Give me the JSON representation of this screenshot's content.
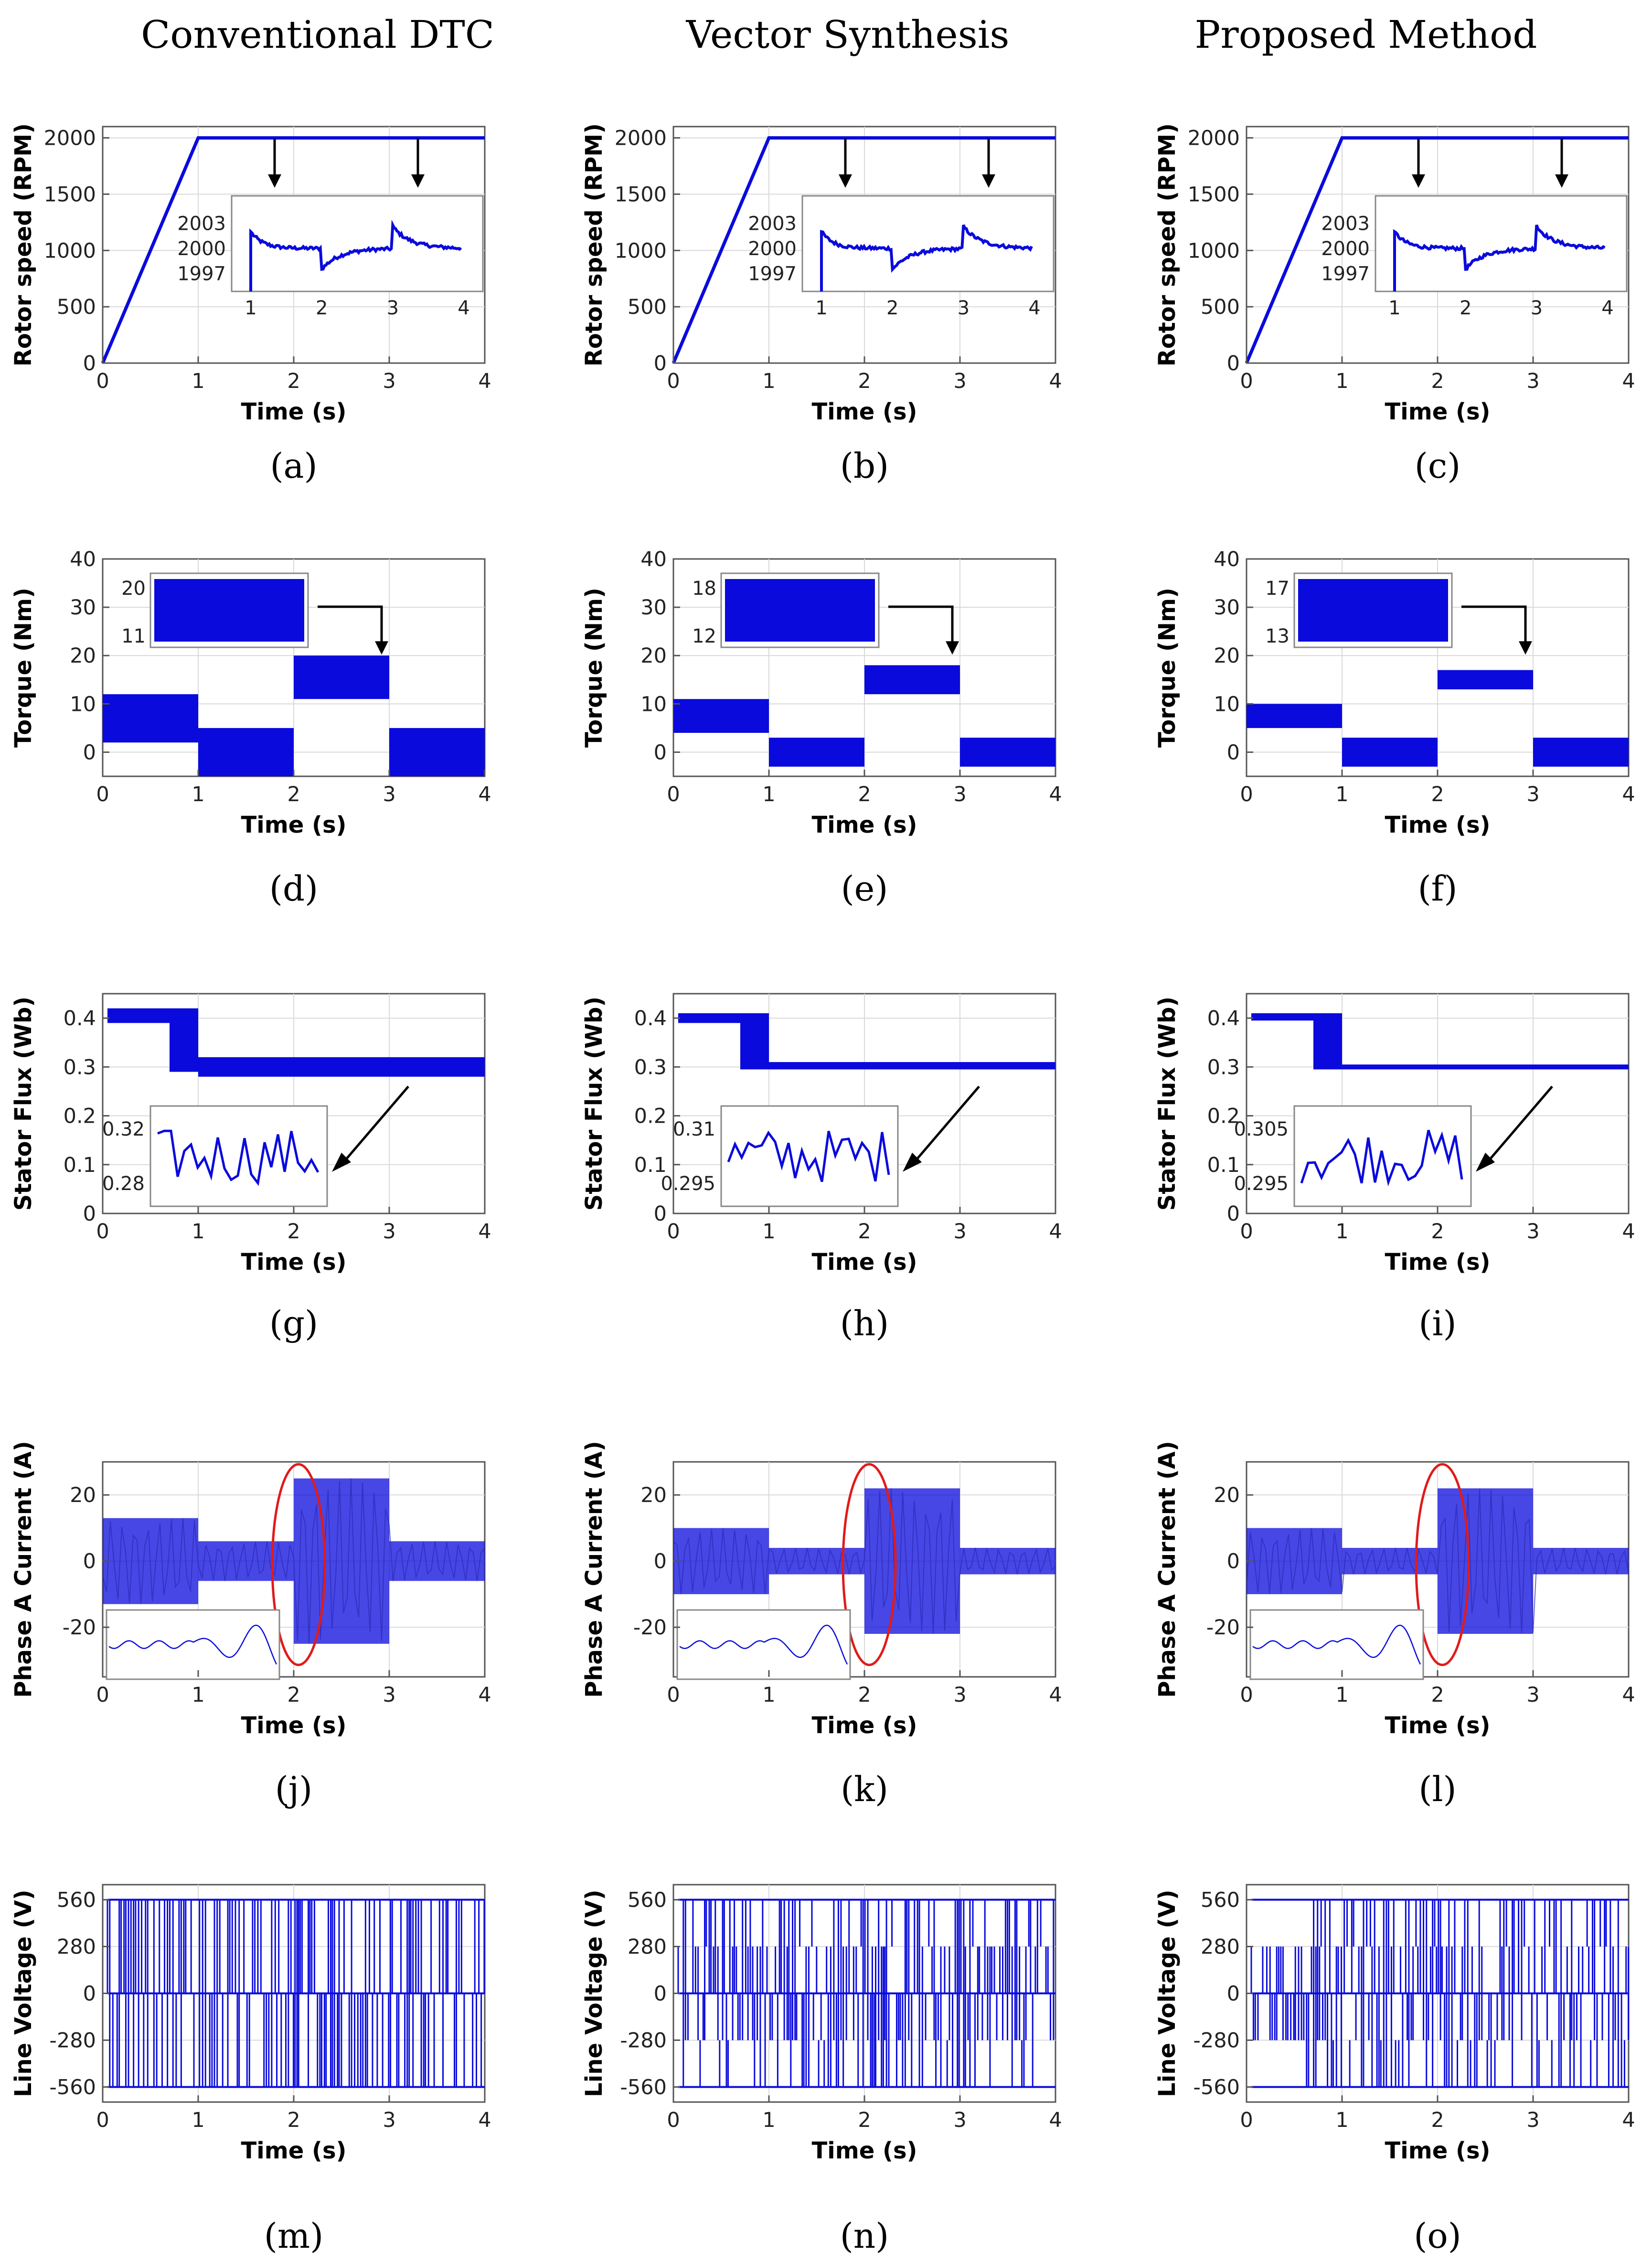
{
  "columns": [
    "Conventional DTC",
    "Vector Synthesis",
    "Proposed Method"
  ],
  "colors": {
    "trace": "#0a0adc",
    "highlight": "#e01b1b",
    "axis": "#555555",
    "grid": "#d9d9d9"
  },
  "chart_data": [
    {
      "type": "line",
      "row": "speed",
      "title": "Conventional DTC",
      "panel": "(a)",
      "xlabel": "Time (s)",
      "ylabel": "Rotor speed (RPM)",
      "xlim": [
        0,
        4
      ],
      "ylim": [
        0,
        2100
      ],
      "xticks": [
        0,
        1,
        2,
        3,
        4
      ],
      "yticks": [
        0,
        500,
        1000,
        1500,
        2000
      ],
      "series": [
        {
          "name": "speed",
          "x": [
            0,
            1,
            4
          ],
          "y": [
            0,
            2000,
            2000
          ]
        }
      ],
      "inset": {
        "yticks": [
          2003,
          2000,
          1997
        ],
        "xticks": [
          1,
          2,
          3,
          4
        ]
      }
    },
    {
      "type": "line",
      "row": "speed",
      "title": "Vector Synthesis",
      "panel": "(b)",
      "xlabel": "Time (s)",
      "ylabel": "Rotor speed (RPM)",
      "xlim": [
        0,
        4
      ],
      "ylim": [
        0,
        2100
      ],
      "xticks": [
        0,
        1,
        2,
        3,
        4
      ],
      "yticks": [
        0,
        500,
        1000,
        1500,
        2000
      ],
      "series": [
        {
          "name": "speed",
          "x": [
            0,
            1,
            4
          ],
          "y": [
            0,
            2000,
            2000
          ]
        }
      ],
      "inset": {
        "yticks": [
          2003,
          2000,
          1997
        ],
        "xticks": [
          1,
          2,
          3,
          4
        ]
      }
    },
    {
      "type": "line",
      "row": "speed",
      "title": "Proposed Method",
      "panel": "(c)",
      "xlabel": "Time (s)",
      "ylabel": "Rotor speed (RPM)",
      "xlim": [
        0,
        4
      ],
      "ylim": [
        0,
        2100
      ],
      "xticks": [
        0,
        1,
        2,
        3,
        4
      ],
      "yticks": [
        0,
        500,
        1000,
        1500,
        2000
      ],
      "series": [
        {
          "name": "speed",
          "x": [
            0,
            1,
            4
          ],
          "y": [
            0,
            2000,
            2000
          ]
        }
      ],
      "inset": {
        "yticks": [
          2003,
          2000,
          1997
        ],
        "xticks": [
          1,
          2,
          3,
          4
        ]
      }
    },
    {
      "type": "area",
      "row": "torque",
      "title": "Conventional DTC",
      "panel": "(d)",
      "xlabel": "Time (s)",
      "ylabel": "Torque (Nm)",
      "xlim": [
        0,
        4
      ],
      "ylim": [
        -5,
        40
      ],
      "xticks": [
        0,
        1,
        2,
        3,
        4
      ],
      "yticks": [
        0,
        10,
        20,
        30,
        40
      ],
      "bands": [
        {
          "x0": 0,
          "x1": 1,
          "lo": 2,
          "hi": 12
        },
        {
          "x0": 1,
          "x1": 2,
          "lo": -5,
          "hi": 5
        },
        {
          "x0": 2,
          "x1": 3,
          "lo": 11,
          "hi": 20
        },
        {
          "x0": 3,
          "x1": 4,
          "lo": -5,
          "hi": 5
        }
      ],
      "inset": {
        "yticks": [
          20,
          11
        ]
      }
    },
    {
      "type": "area",
      "row": "torque",
      "title": "Vector Synthesis",
      "panel": "(e)",
      "xlabel": "Time (s)",
      "ylabel": "Torque (Nm)",
      "xlim": [
        0,
        4
      ],
      "ylim": [
        -5,
        40
      ],
      "xticks": [
        0,
        1,
        2,
        3,
        4
      ],
      "yticks": [
        0,
        10,
        20,
        30,
        40
      ],
      "bands": [
        {
          "x0": 0,
          "x1": 1,
          "lo": 4,
          "hi": 11
        },
        {
          "x0": 1,
          "x1": 2,
          "lo": -3,
          "hi": 3
        },
        {
          "x0": 2,
          "x1": 3,
          "lo": 12,
          "hi": 18
        },
        {
          "x0": 3,
          "x1": 4,
          "lo": -3,
          "hi": 3
        }
      ],
      "inset": {
        "yticks": [
          18,
          12
        ]
      }
    },
    {
      "type": "area",
      "row": "torque",
      "title": "Proposed Method",
      "panel": "(f)",
      "xlabel": "Time (s)",
      "ylabel": "Torque (Nm)",
      "xlim": [
        0,
        4
      ],
      "ylim": [
        -5,
        40
      ],
      "xticks": [
        0,
        1,
        2,
        3,
        4
      ],
      "yticks": [
        0,
        10,
        20,
        30,
        40
      ],
      "bands": [
        {
          "x0": 0,
          "x1": 1,
          "lo": 5,
          "hi": 10
        },
        {
          "x0": 1,
          "x1": 2,
          "lo": -3,
          "hi": 3
        },
        {
          "x0": 2,
          "x1": 3,
          "lo": 13,
          "hi": 17
        },
        {
          "x0": 3,
          "x1": 4,
          "lo": -3,
          "hi": 3
        }
      ],
      "inset": {
        "yticks": [
          17,
          13
        ]
      }
    },
    {
      "type": "area",
      "row": "flux",
      "title": "Conventional DTC",
      "panel": "(g)",
      "xlabel": "Time (s)",
      "ylabel": "Stator Flux (Wb)",
      "xlim": [
        0,
        4
      ],
      "ylim": [
        0,
        0.45
      ],
      "xticks": [
        0,
        1,
        2,
        3,
        4
      ],
      "yticks": [
        0,
        0.1,
        0.2,
        0.3,
        0.4
      ],
      "bands": [
        {
          "x0": 0.05,
          "x1": 0.7,
          "lo": 0.39,
          "hi": 0.42
        },
        {
          "x0": 0.7,
          "x1": 1.0,
          "lo": 0.29,
          "hi": 0.42
        },
        {
          "x0": 1.0,
          "x1": 4,
          "lo": 0.28,
          "hi": 0.32
        }
      ],
      "inset": {
        "yticks": [
          0.32,
          0.28
        ]
      }
    },
    {
      "type": "area",
      "row": "flux",
      "title": "Vector Synthesis",
      "panel": "(h)",
      "xlabel": "Time (s)",
      "ylabel": "Stator Flux (Wb)",
      "xlim": [
        0,
        4
      ],
      "ylim": [
        0,
        0.45
      ],
      "xticks": [
        0,
        1,
        2,
        3,
        4
      ],
      "yticks": [
        0,
        0.1,
        0.2,
        0.3,
        0.4
      ],
      "bands": [
        {
          "x0": 0.05,
          "x1": 0.7,
          "lo": 0.39,
          "hi": 0.41
        },
        {
          "x0": 0.7,
          "x1": 1.0,
          "lo": 0.295,
          "hi": 0.41
        },
        {
          "x0": 1.0,
          "x1": 4,
          "lo": 0.295,
          "hi": 0.31
        }
      ],
      "inset": {
        "yticks": [
          0.31,
          0.295
        ]
      }
    },
    {
      "type": "area",
      "row": "flux",
      "title": "Proposed Method",
      "panel": "(i)",
      "xlabel": "Time (s)",
      "ylabel": "Stator Flux (Wb)",
      "xlim": [
        0,
        4
      ],
      "ylim": [
        0,
        0.45
      ],
      "xticks": [
        0,
        1,
        2,
        3,
        4
      ],
      "yticks": [
        0,
        0.1,
        0.2,
        0.3,
        0.4
      ],
      "bands": [
        {
          "x0": 0.05,
          "x1": 0.7,
          "lo": 0.395,
          "hi": 0.41
        },
        {
          "x0": 0.7,
          "x1": 1.0,
          "lo": 0.295,
          "hi": 0.41
        },
        {
          "x0": 1.0,
          "x1": 4,
          "lo": 0.295,
          "hi": 0.305
        }
      ],
      "inset": {
        "yticks": [
          0.305,
          0.295
        ]
      }
    },
    {
      "type": "area",
      "row": "current",
      "title": "Conventional DTC",
      "panel": "(j)",
      "xlabel": "Time (s)",
      "ylabel": "Phase A Current (A)",
      "xlim": [
        0,
        4
      ],
      "ylim": [
        -35,
        30
      ],
      "xticks": [
        0,
        1,
        2,
        3,
        4
      ],
      "yticks": [
        -20,
        0,
        20
      ],
      "bands": [
        {
          "x0": 0,
          "x1": 1,
          "lo": -13,
          "hi": 13
        },
        {
          "x0": 1,
          "x1": 2,
          "lo": -6,
          "hi": 6
        },
        {
          "x0": 2,
          "x1": 3,
          "lo": -25,
          "hi": 25
        },
        {
          "x0": 3,
          "x1": 4,
          "lo": -6,
          "hi": 6
        }
      ],
      "highlight_x": 2.05
    },
    {
      "type": "area",
      "row": "current",
      "title": "Vector Synthesis",
      "panel": "(k)",
      "xlabel": "Time (s)",
      "ylabel": "Phase A Current (A)",
      "xlim": [
        0,
        4
      ],
      "ylim": [
        -35,
        30
      ],
      "xticks": [
        0,
        1,
        2,
        3,
        4
      ],
      "yticks": [
        -20,
        0,
        20
      ],
      "bands": [
        {
          "x0": 0,
          "x1": 1,
          "lo": -10,
          "hi": 10
        },
        {
          "x0": 1,
          "x1": 2,
          "lo": -4,
          "hi": 4
        },
        {
          "x0": 2,
          "x1": 3,
          "lo": -22,
          "hi": 22
        },
        {
          "x0": 3,
          "x1": 4,
          "lo": -4,
          "hi": 4
        }
      ],
      "highlight_x": 2.05
    },
    {
      "type": "area",
      "row": "current",
      "title": "Proposed Method",
      "panel": "(l)",
      "xlabel": "Time (s)",
      "ylabel": "Phase A Current (A)",
      "xlim": [
        0,
        4
      ],
      "ylim": [
        -35,
        30
      ],
      "xticks": [
        0,
        1,
        2,
        3,
        4
      ],
      "yticks": [
        -20,
        0,
        20
      ],
      "bands": [
        {
          "x0": 0,
          "x1": 1,
          "lo": -10,
          "hi": 10
        },
        {
          "x0": 1,
          "x1": 2,
          "lo": -4,
          "hi": 4
        },
        {
          "x0": 2,
          "x1": 3,
          "lo": -22,
          "hi": 22
        },
        {
          "x0": 3,
          "x1": 4,
          "lo": -4,
          "hi": 4
        }
      ],
      "highlight_x": 2.05
    },
    {
      "type": "bar",
      "row": "voltage",
      "title": "Conventional DTC",
      "panel": "(m)",
      "xlabel": "Time (s)",
      "ylabel": "Line Voltage (V)",
      "xlim": [
        0,
        4
      ],
      "ylim": [
        -650,
        650
      ],
      "xticks": [
        0,
        1,
        2,
        3,
        4
      ],
      "yticks": [
        560,
        280,
        0,
        -280,
        -560
      ],
      "ytick_labels": [
        "560",
        "280",
        "0",
        "-280",
        "-560"
      ],
      "levels": [
        -560,
        0,
        560
      ],
      "start": 0.05
    },
    {
      "type": "bar",
      "row": "voltage",
      "title": "Vector Synthesis",
      "panel": "(n)",
      "xlabel": "Time (s)",
      "ylabel": "Line Voltage (V)",
      "xlim": [
        0,
        4
      ],
      "ylim": [
        -650,
        650
      ],
      "xticks": [
        0,
        1,
        2,
        3,
        4
      ],
      "yticks": [
        560,
        280,
        0,
        -280,
        -560
      ],
      "ytick_labels": [
        "560",
        "280",
        "0",
        "-280",
        "-560"
      ],
      "levels": [
        -560,
        -280,
        0,
        280,
        560
      ],
      "start": 0.05
    },
    {
      "type": "bar",
      "row": "voltage",
      "title": "Proposed Method",
      "panel": "(o)",
      "xlabel": "Time (s)",
      "ylabel": "Line Voltage (V)",
      "xlim": [
        0,
        4
      ],
      "ylim": [
        -650,
        650
      ],
      "xticks": [
        0,
        1,
        2,
        3,
        4
      ],
      "yticks": [
        560,
        280,
        0,
        -280,
        -560
      ],
      "ytick_labels": [
        "560",
        "280",
        "0",
        "-280",
        "-560"
      ],
      "levels_early": [
        -280,
        0,
        280
      ],
      "levels": [
        -560,
        -280,
        0,
        280,
        560
      ],
      "start": 0.05,
      "switch_x": 0.6
    }
  ]
}
